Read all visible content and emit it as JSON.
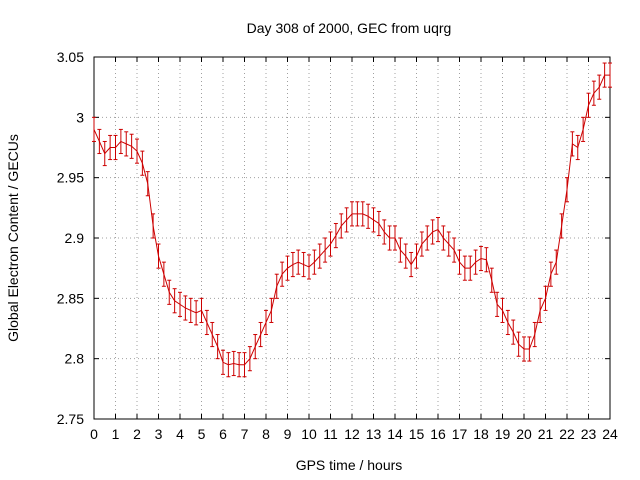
{
  "chart_data": {
    "type": "line",
    "title": "Day 308 of 2000, GEC from uqrg",
    "xlabel": "GPS time / hours",
    "ylabel": "Global Electron Content / GECUs",
    "xlim": [
      0,
      24
    ],
    "ylim": [
      2.75,
      3.05
    ],
    "x_ticks": [
      0,
      1,
      2,
      3,
      4,
      5,
      6,
      7,
      8,
      9,
      10,
      11,
      12,
      13,
      14,
      15,
      16,
      17,
      18,
      19,
      20,
      21,
      22,
      23,
      24
    ],
    "y_ticks": [
      2.75,
      2.8,
      2.85,
      2.9,
      2.95,
      3.0,
      3.05
    ],
    "y_tick_labels": [
      "2.75",
      "2.8",
      "2.85",
      "2.9",
      "2.95",
      "3",
      "3.05"
    ],
    "grid": true,
    "grid_style": "dotted",
    "legend": "none",
    "error_bars": true,
    "error_half_width": 0.01,
    "color": "#cc0000",
    "series": [
      {
        "x": [
          0,
          0.25,
          0.5,
          0.75,
          1,
          1.25,
          1.5,
          1.75,
          2,
          2.25,
          2.5,
          2.75,
          3,
          3.25,
          3.5,
          3.75,
          4,
          4.25,
          4.5,
          4.75,
          5,
          5.25,
          5.5,
          5.75,
          6,
          6.25,
          6.5,
          6.75,
          7,
          7.25,
          7.5,
          7.75,
          8,
          8.25,
          8.5,
          8.75,
          9,
          9.25,
          9.5,
          9.75,
          10,
          10.25,
          10.5,
          10.75,
          11,
          11.25,
          11.5,
          11.75,
          12,
          12.25,
          12.5,
          12.75,
          13,
          13.25,
          13.5,
          13.75,
          14,
          14.25,
          14.5,
          14.75,
          15,
          15.25,
          15.5,
          15.75,
          16,
          16.25,
          16.5,
          16.75,
          17,
          17.25,
          17.5,
          17.75,
          18,
          18.25,
          18.5,
          18.75,
          19,
          19.25,
          19.5,
          19.75,
          20,
          20.25,
          20.5,
          20.75,
          21,
          21.25,
          21.5,
          21.75,
          22,
          22.25,
          22.5,
          22.75,
          23,
          23.25,
          23.5,
          23.75,
          24
        ],
        "y": [
          2.99,
          2.98,
          2.97,
          2.975,
          2.975,
          2.98,
          2.978,
          2.976,
          2.972,
          2.962,
          2.945,
          2.91,
          2.885,
          2.87,
          2.855,
          2.848,
          2.845,
          2.842,
          2.84,
          2.838,
          2.84,
          2.83,
          2.82,
          2.81,
          2.797,
          2.795,
          2.796,
          2.795,
          2.795,
          2.8,
          2.81,
          2.82,
          2.83,
          2.84,
          2.86,
          2.87,
          2.875,
          2.878,
          2.88,
          2.878,
          2.876,
          2.88,
          2.885,
          2.89,
          2.895,
          2.902,
          2.91,
          2.915,
          2.92,
          2.92,
          2.92,
          2.918,
          2.915,
          2.912,
          2.905,
          2.9,
          2.9,
          2.89,
          2.885,
          2.878,
          2.885,
          2.895,
          2.9,
          2.905,
          2.907,
          2.9,
          2.895,
          2.89,
          2.88,
          2.875,
          2.875,
          2.88,
          2.883,
          2.882,
          2.865,
          2.845,
          2.84,
          2.83,
          2.822,
          2.812,
          2.808,
          2.808,
          2.82,
          2.84,
          2.85,
          2.87,
          2.88,
          2.91,
          2.94,
          2.978,
          2.975,
          2.99,
          3.01,
          3.02,
          3.025,
          3.035,
          3.035
        ]
      }
    ]
  }
}
